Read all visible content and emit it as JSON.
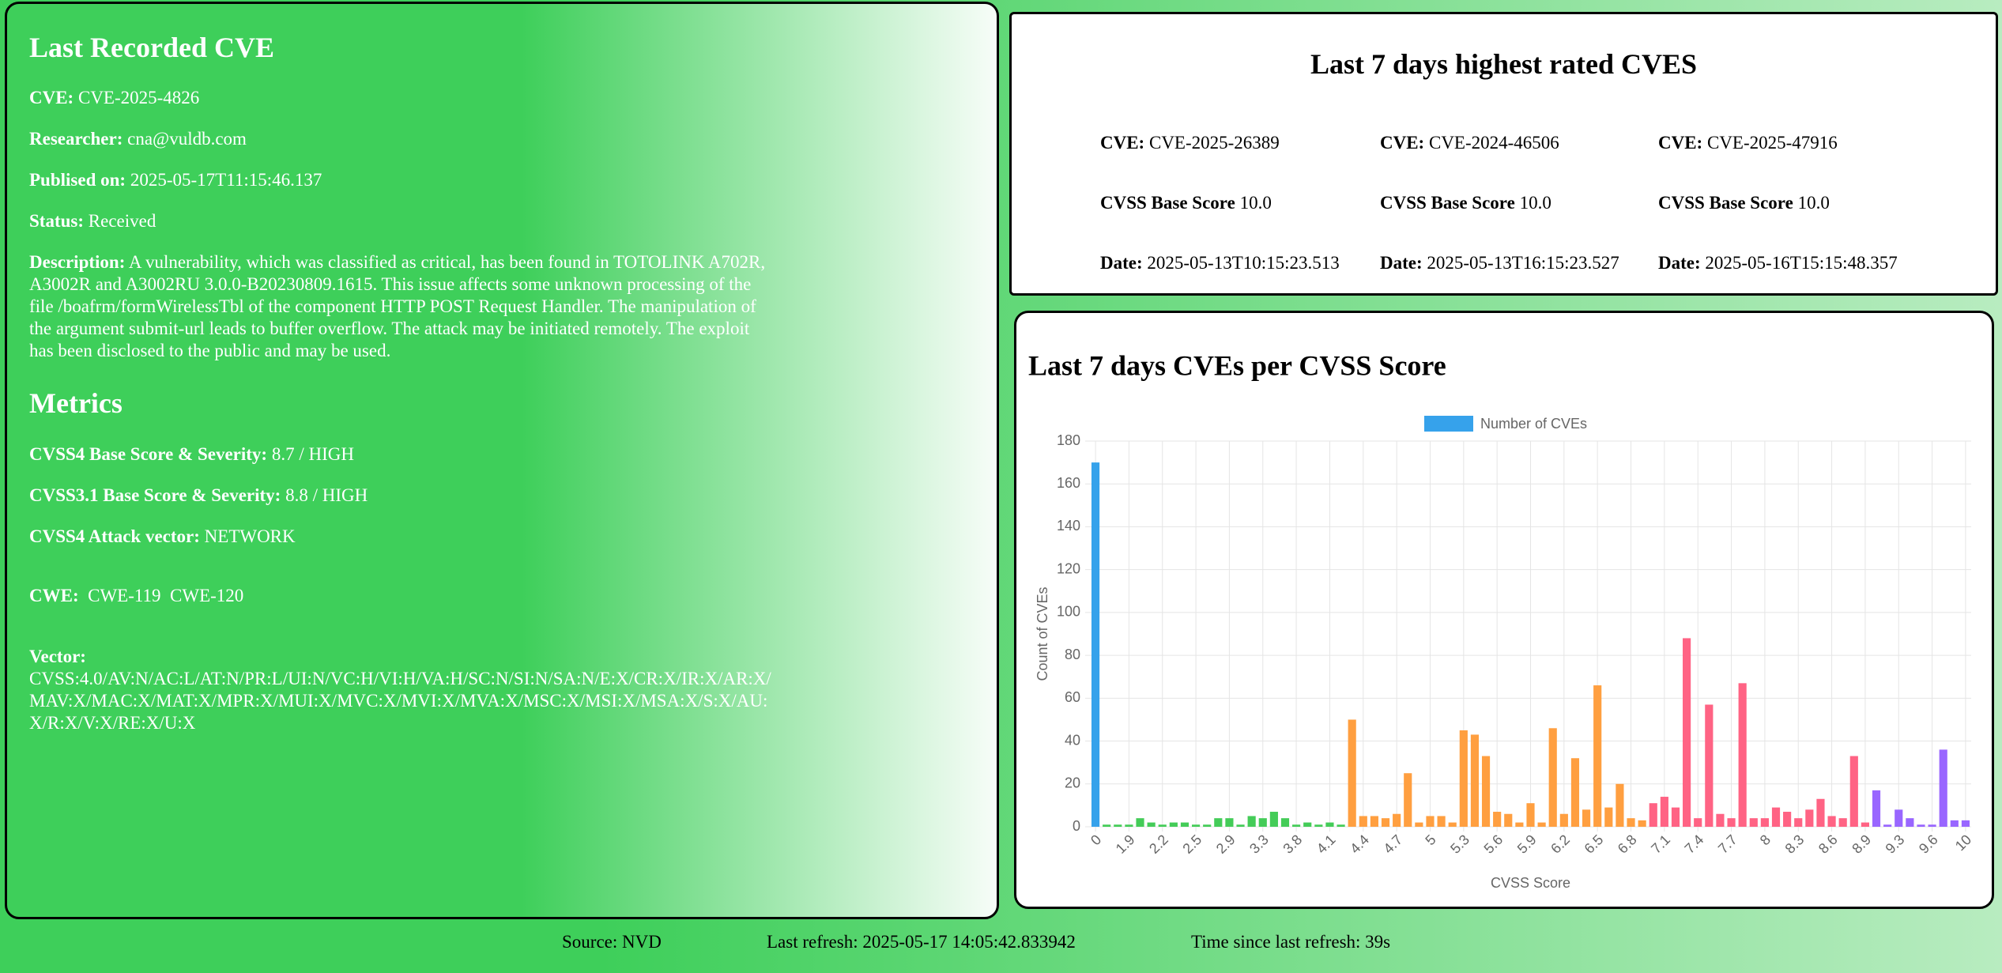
{
  "last_cve": {
    "title": "Last Recorded CVE",
    "fields": [
      {
        "label": "CVE:",
        "value": "CVE-2025-4826"
      },
      {
        "label": "Researcher:",
        "value": "cna@vuldb.com"
      },
      {
        "label": "Publised on:",
        "value": "2025-05-17T11:15:46.137"
      },
      {
        "label": "Status:",
        "value": "Received"
      },
      {
        "label": "Description:",
        "value": "A vulnerability, which was classified as critical, has been found in TOTOLINK A702R, A3002R and A3002RU 3.0.0-B20230809.1615. This issue affects some unknown processing of the file /boafrm/formWirelessTbl of the component HTTP POST Request Handler. The manipulation of the argument submit-url leads to buffer overflow. The attack may be initiated remotely. The exploit has been disclosed to the public and may be used."
      }
    ],
    "metrics_title": "Metrics",
    "metrics": [
      {
        "label": "CVSS4 Base Score & Severity:",
        "value": "8.7 / HIGH"
      },
      {
        "label": "CVSS3.1 Base Score & Severity:",
        "value": "8.8 / HIGH"
      },
      {
        "label": "CVSS4 Attack vector:",
        "value": "NETWORK"
      }
    ],
    "cwe": {
      "label": "CWE:",
      "values": [
        "CWE-119",
        "CWE-120"
      ]
    },
    "vector": {
      "label": "Vector:",
      "value": "CVSS:4.0/AV:N/AC:L/AT:N/PR:L/UI:N/VC:H/VI:H/VA:H/SC:N/SI:N/SA:N/E:X/CR:X/IR:X/AR:X/MAV:X/MAC:X/MAT:X/MPR:X/MUI:X/MVC:X/MVI:X/MVA:X/MSC:X/MSI:X/MSA:X/S:X/AU:X/R:X/V:X/RE:X/U:X"
    }
  },
  "top_cves": {
    "title": "Last 7 days highest rated CVES",
    "labels": {
      "cve": "CVE:",
      "score": "CVSS Base Score",
      "date": "Date:"
    },
    "items": [
      {
        "cve": "CVE-2025-26389",
        "score": "10.0",
        "date": "2025-05-13T10:15:23.513"
      },
      {
        "cve": "CVE-2024-46506",
        "score": "10.0",
        "date": "2025-05-13T16:15:23.527"
      },
      {
        "cve": "CVE-2025-47916",
        "score": "10.0",
        "date": "2025-05-16T15:15:48.357"
      }
    ]
  },
  "chart_data": {
    "type": "bar",
    "title": "Last 7 days CVEs per CVSS Score",
    "series_name": "Number of CVEs",
    "legend_color": "#36a2eb",
    "x_label": "CVSS Score",
    "y_label": "Count of CVEs",
    "categories": [
      "0",
      null,
      null,
      "1.9",
      null,
      null,
      "2.2",
      null,
      null,
      "2.5",
      null,
      null,
      "2.9",
      null,
      null,
      "3.3",
      null,
      null,
      "3.8",
      null,
      null,
      "4.1",
      null,
      null,
      "4.4",
      null,
      null,
      "4.7",
      null,
      null,
      "5",
      null,
      null,
      "5.3",
      null,
      null,
      "5.6",
      null,
      null,
      "5.9",
      null,
      null,
      "6.2",
      null,
      null,
      "6.5",
      null,
      null,
      "6.8",
      null,
      null,
      "7.1",
      null,
      null,
      "7.4",
      null,
      null,
      "7.7",
      null,
      null,
      "8",
      null,
      null,
      "8.3",
      null,
      null,
      "8.6",
      null,
      null,
      "8.9",
      null,
      null,
      "9.3",
      null,
      null,
      "9.6",
      null,
      null,
      "10"
    ],
    "values": [
      170,
      1,
      1,
      1,
      4,
      2,
      1,
      2,
      2,
      1,
      1,
      4,
      4,
      1,
      5,
      4,
      7,
      4,
      1,
      2,
      1,
      2,
      1,
      50,
      5,
      5,
      4,
      6,
      25,
      2,
      5,
      5,
      2,
      45,
      43,
      33,
      7,
      6,
      2,
      11,
      2,
      46,
      6,
      32,
      8,
      66,
      9,
      20,
      4,
      3,
      11,
      14,
      9,
      88,
      4,
      57,
      6,
      4,
      67,
      4,
      4,
      9,
      7,
      4,
      8,
      13,
      5,
      4,
      33,
      2,
      17,
      1,
      8,
      4,
      1,
      1,
      36,
      3,
      3
    ],
    "colors": [
      "#36a2eb",
      "#44cc58",
      "#44cc58",
      "#44cc58",
      "#44cc58",
      "#44cc58",
      "#44cc58",
      "#44cc58",
      "#44cc58",
      "#44cc58",
      "#44cc58",
      "#44cc58",
      "#44cc58",
      "#44cc58",
      "#44cc58",
      "#44cc58",
      "#44cc58",
      "#44cc58",
      "#44cc58",
      "#44cc58",
      "#44cc58",
      "#44cc58",
      "#44cc58",
      "#ff9f40",
      "#ff9f40",
      "#ff9f40",
      "#ff9f40",
      "#ff9f40",
      "#ff9f40",
      "#ff9f40",
      "#ff9f40",
      "#ff9f40",
      "#ff9f40",
      "#ff9f40",
      "#ff9f40",
      "#ff9f40",
      "#ff9f40",
      "#ff9f40",
      "#ff9f40",
      "#ff9f40",
      "#ff9f40",
      "#ff9f40",
      "#ff9f40",
      "#ff9f40",
      "#ff9f40",
      "#ff9f40",
      "#ff9f40",
      "#ff9f40",
      "#ff9f40",
      "#ff9f40",
      "#ff6384",
      "#ff6384",
      "#ff6384",
      "#ff6384",
      "#ff6384",
      "#ff6384",
      "#ff6384",
      "#ff6384",
      "#ff6384",
      "#ff6384",
      "#ff6384",
      "#ff6384",
      "#ff6384",
      "#ff6384",
      "#ff6384",
      "#ff6384",
      "#ff6384",
      "#ff6384",
      "#ff6384",
      "#ff6384",
      "#9966ff",
      "#9966ff",
      "#9966ff",
      "#9966ff",
      "#9966ff",
      "#9966ff",
      "#9966ff",
      "#9966ff",
      "#9966ff"
    ],
    "ylim": [
      0,
      180
    ],
    "yticks": [
      0,
      20,
      40,
      60,
      80,
      100,
      120,
      140,
      160,
      180
    ],
    "grid": true,
    "legend": "top"
  },
  "footer": {
    "source": "Source: NVD",
    "last_refresh": "Last refresh: 2025-05-17 14:05:42.833942",
    "time_since": "Time since last refresh: 39s"
  }
}
